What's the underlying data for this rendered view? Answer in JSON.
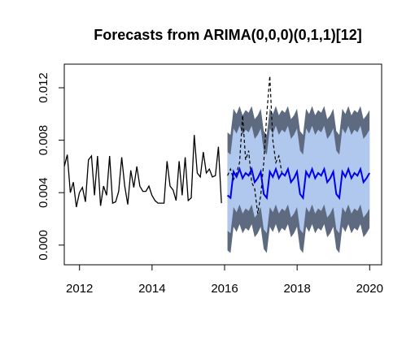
{
  "chart_data": {
    "type": "line",
    "title": "Forecasts from ARIMA(0,0,0)(0,1,1)[12]",
    "xlabel": "",
    "ylabel": "",
    "xlim": [
      2011.58,
      2020.33
    ],
    "ylim": [
      -0.0015,
      0.0138
    ],
    "x_ticks": [
      2012,
      2014,
      2016,
      2018,
      2020
    ],
    "x_tick_labels": [
      "2012",
      "2014",
      "2016",
      "2018",
      "2020"
    ],
    "y_ticks": [
      0.0,
      0.004,
      0.008,
      0.012
    ],
    "y_tick_labels": [
      "0.000",
      "0.004",
      "0.008",
      "0.012"
    ],
    "grid": false,
    "legend": "none",
    "colors": {
      "observed": "#000000",
      "forecast": "#0000ee",
      "band80": "#b0c8ee",
      "band95": "#5e6a80",
      "actual_dashed": "#000000"
    },
    "observed": {
      "start": 2011.58,
      "step": 0.08333,
      "values": [
        0.006,
        0.0069,
        0.004,
        0.0048,
        0.0029,
        0.004,
        0.0044,
        0.0033,
        0.0065,
        0.0068,
        0.0038,
        0.0068,
        0.003,
        0.0045,
        0.0038,
        0.0068,
        0.0032,
        0.0033,
        0.0041,
        0.0067,
        0.0045,
        0.0031,
        0.0057,
        0.0044,
        0.006,
        0.0045,
        0.0041,
        0.0041,
        0.0045,
        0.0038,
        0.0034,
        0.0032,
        0.0032,
        0.0032,
        0.0064,
        0.0045,
        0.0042,
        0.0034,
        0.0064,
        0.0038,
        0.0067,
        0.0034,
        0.0036,
        0.0084,
        0.0055,
        0.0052,
        0.0071,
        0.0055,
        0.0058,
        0.0052,
        0.0053,
        0.0075,
        0.0032
      ]
    },
    "forecast": {
      "start": 2016.08,
      "step": 0.08333,
      "mean": [
        0.0038,
        0.0036,
        0.0056,
        0.0052,
        0.0058,
        0.0051,
        0.0055,
        0.0053,
        0.0058,
        0.0048,
        0.0051,
        0.0056,
        0.0039,
        0.0036,
        0.0056,
        0.0052,
        0.0058,
        0.0051,
        0.0055,
        0.0053,
        0.0058,
        0.0048,
        0.0051,
        0.0056,
        0.0039,
        0.0036,
        0.0056,
        0.0052,
        0.0058,
        0.0051,
        0.0055,
        0.0053,
        0.0058,
        0.0048,
        0.0051,
        0.0056,
        0.0039,
        0.0036,
        0.0056,
        0.0052,
        0.0058,
        0.0051,
        0.0055,
        0.0053,
        0.0058,
        0.0048,
        0.0051,
        0.0055
      ],
      "lo80_offset": 0.0027,
      "hi80_offset": 0.0033,
      "lo95_offset": 0.0042,
      "hi95_offset": 0.0048
    },
    "actual": {
      "start": 2016.08,
      "step": 0.08333,
      "values": [
        0.0053,
        0.0058,
        0.005,
        0.0055,
        0.0063,
        0.0099,
        0.0065,
        0.0072,
        0.0048,
        0.0043,
        0.0024,
        0.0038,
        0.0063,
        0.01,
        0.0129,
        0.008,
        0.0063,
        0.0068,
        0.0055
      ]
    }
  }
}
